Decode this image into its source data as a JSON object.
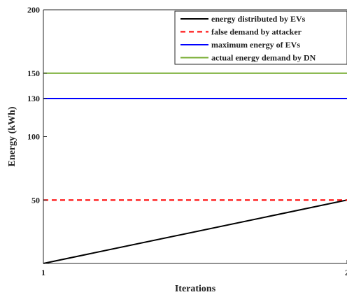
{
  "chart_data": {
    "type": "line",
    "xlabel": "Iterations",
    "ylabel": "Energy (kWh)",
    "xlim": [
      1,
      2
    ],
    "ylim": [
      0,
      200
    ],
    "xticks": [
      1,
      2
    ],
    "yticks": [
      50,
      100,
      130,
      150,
      200
    ],
    "grid": false,
    "legend_position": "top-right",
    "series": [
      {
        "name": "energy distributed by EVs",
        "x": [
          1,
          2
        ],
        "y": [
          0,
          50
        ],
        "color": "#000000",
        "dash": "solid"
      },
      {
        "name": "false demand by attacker",
        "x": [
          1,
          2
        ],
        "y": [
          50,
          50
        ],
        "color": "#ff0000",
        "dash": "dashed"
      },
      {
        "name": "maximum energy of EVs",
        "x": [
          1,
          2
        ],
        "y": [
          130,
          130
        ],
        "color": "#0000ff",
        "dash": "solid"
      },
      {
        "name": "actual energy demand by DN",
        "x": [
          1,
          2
        ],
        "y": [
          150,
          150
        ],
        "color": "#77ac30",
        "dash": "solid"
      }
    ]
  }
}
